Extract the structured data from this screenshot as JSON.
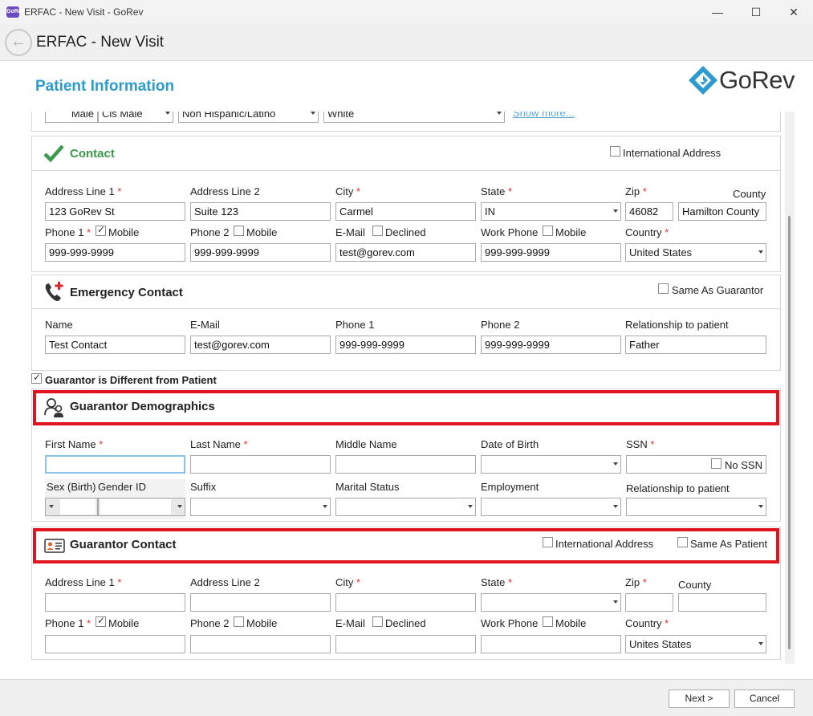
{
  "window": {
    "app_icon": "GoRev",
    "title": "ERFAC - New Visit - GoRev",
    "minimize": "—",
    "maximize": "☐",
    "close": "✕"
  },
  "header": {
    "title": "ERFAC - New Visit"
  },
  "page": {
    "section_title": "Patient Information",
    "logo": "GoRev"
  },
  "demographics_partial": {
    "sex": "Male",
    "gender": "Cis Male",
    "ethnicity": "Non Hispanic/Latino",
    "race": "White",
    "show_more": "Show more..."
  },
  "contact": {
    "title": "Contact",
    "intl_address": "International Address",
    "address1_label": "Address Line 1",
    "address1": "123 GoRev St",
    "address2_label": "Address Line 2",
    "address2": "Suite 123",
    "city_label": "City",
    "city": "Carmel",
    "state_label": "State",
    "state": "IN",
    "zip_label": "Zip",
    "zip": "46082",
    "county_label": "County",
    "county": "Hamilton County",
    "phone1_label": "Phone 1",
    "phone1": "999-999-9999",
    "phone2_label": "Phone 2",
    "phone2": "999-999-9999",
    "email_label": "E-Mail",
    "email": "test@gorev.com",
    "work_phone_label": "Work Phone",
    "work_phone": "999-999-9999",
    "country_label": "Country",
    "country": "United States",
    "mobile": "Mobile",
    "declined": "Declined",
    "required": "*"
  },
  "emergency": {
    "title": "Emergency Contact",
    "same_as_guarantor": "Same As Guarantor",
    "name_label": "Name",
    "name": "Test Contact",
    "email_label": "E-Mail",
    "email": "test@gorev.com",
    "phone1_label": "Phone 1",
    "phone1": "999-999-9999",
    "phone2_label": "Phone 2",
    "phone2": "999-999-9999",
    "relationship_label": "Relationship to patient",
    "relationship": "Father"
  },
  "guarantor_diff": "Guarantor is Different from Patient",
  "guarantor_demo": {
    "title": "Guarantor Demographics",
    "first_name_label": "First Name",
    "last_name_label": "Last Name",
    "middle_name_label": "Middle Name",
    "dob_label": "Date of Birth",
    "ssn_label": "SSN",
    "no_ssn": "No SSN",
    "sex_label": "Sex (Birth)",
    "gender_label": "Gender ID",
    "suffix_label": "Suffix",
    "marital_label": "Marital Status",
    "employment_label": "Employment",
    "relationship_label": "Relationship to patient"
  },
  "guarantor_contact": {
    "title": "Guarantor Contact",
    "intl_address": "International Address",
    "same_as_patient": "Same As Patient",
    "address1_label": "Address Line 1",
    "address2_label": "Address Line 2",
    "city_label": "City",
    "state_label": "State",
    "zip_label": "Zip",
    "county_label": "County",
    "phone1_label": "Phone 1",
    "phone2_label": "Phone 2",
    "email_label": "E-Mail",
    "work_phone_label": "Work Phone",
    "country_label": "Country",
    "country": "Unites States",
    "mobile": "Mobile",
    "declined": "Declined"
  },
  "footer": {
    "next": "Next >",
    "cancel": "Cancel"
  },
  "colors": {
    "accent": "#2d9ad0",
    "contact_green": "#3a9a4a",
    "highlight": "#e0141e",
    "required": "#d33333"
  }
}
